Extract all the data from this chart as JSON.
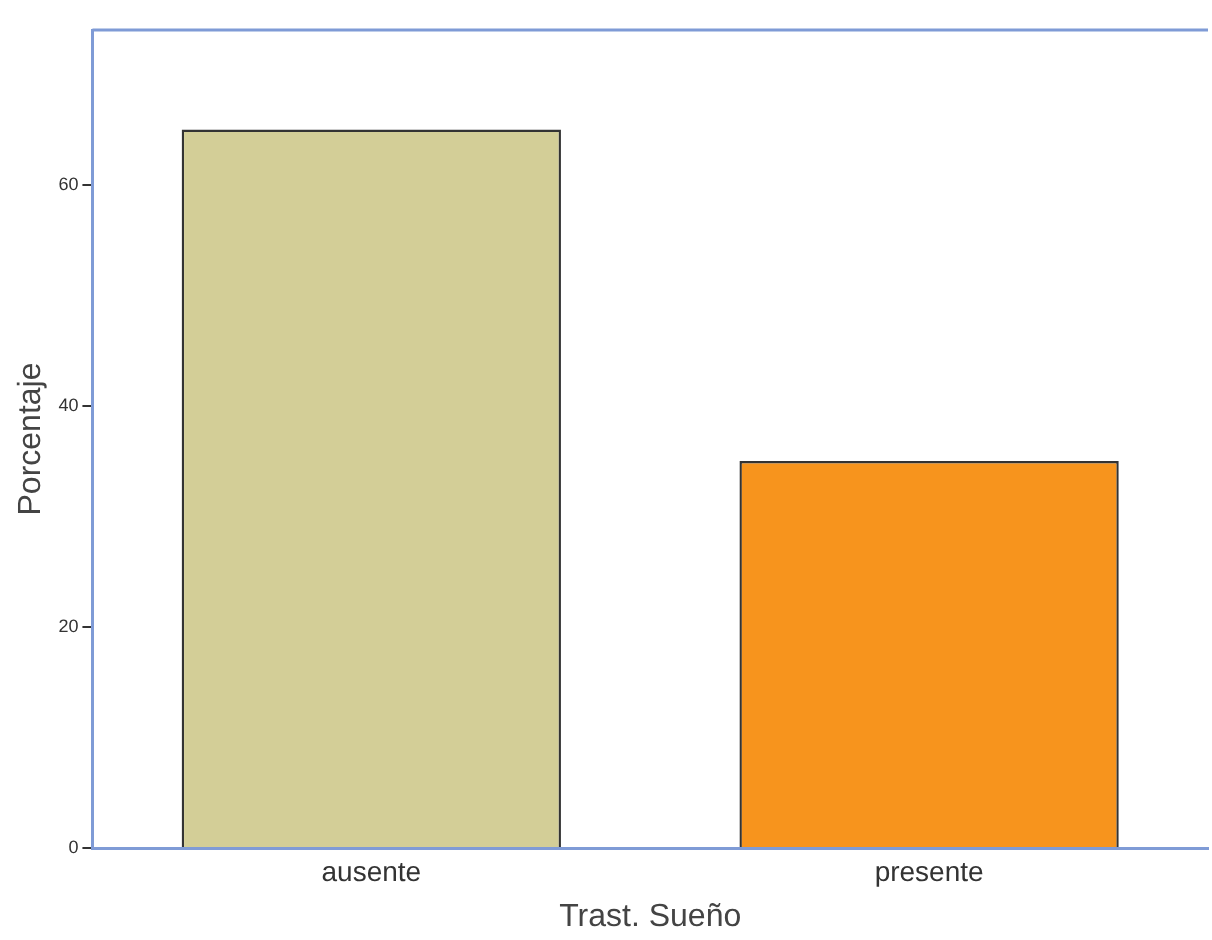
{
  "chart_data": {
    "type": "bar",
    "xlabel": "Trast. Sueño",
    "ylabel": "Porcentaje",
    "categories": [
      "ausente",
      "presente"
    ],
    "values": [
      65,
      35
    ],
    "colors": [
      "#d3ce97",
      "#f7941d"
    ],
    "ylim": [
      0,
      74
    ],
    "yticks": [
      0,
      20,
      40,
      60
    ],
    "grid": false,
    "legend": false
  }
}
